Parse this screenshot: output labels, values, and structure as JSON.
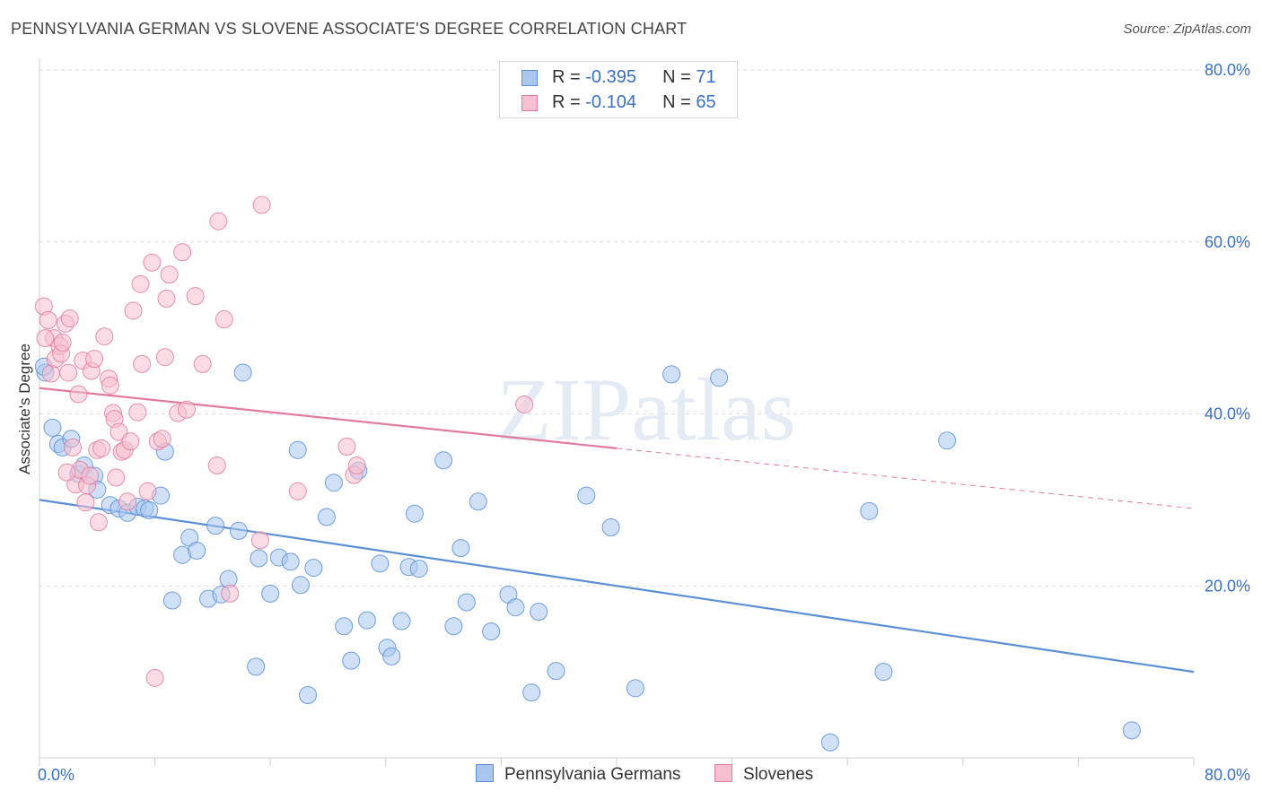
{
  "title": "PENNSYLVANIA GERMAN VS SLOVENE ASSOCIATE'S DEGREE CORRELATION CHART",
  "source": "Source: ZipAtlas.com",
  "watermark": "ZIPatlas",
  "legend": {
    "rows": [
      {
        "r_label": "R = ",
        "r_value": "-0.395",
        "n_label": "N = ",
        "n_value": "71",
        "color": "#a9c6ef",
        "border": "#5b8fd6"
      },
      {
        "r_label": "R = ",
        "r_value": "-0.104",
        "n_label": "N = ",
        "n_value": "65",
        "color": "#f7c0d0",
        "border": "#e27ba0"
      }
    ]
  },
  "bottom_legend": {
    "items": [
      {
        "label": "Pennsylvania Germans",
        "color": "#a9c6ef",
        "border": "#5b8fd6"
      },
      {
        "label": "Slovenes",
        "color": "#f7c0d0",
        "border": "#e27ba0"
      }
    ]
  },
  "chart_data": {
    "type": "scatter",
    "title": "PENNSYLVANIA GERMAN VS SLOVENE ASSOCIATE'S DEGREE CORRELATION CHART",
    "xlabel": "",
    "ylabel": "Associate's Degree",
    "xlim": [
      0,
      80
    ],
    "ylim": [
      0,
      80
    ],
    "x_tick_labels": [
      "0.0%",
      "80.0%"
    ],
    "y_tick_labels": [
      "20.0%",
      "40.0%",
      "60.0%",
      "80.0%"
    ],
    "y_ticks": [
      20,
      40,
      60,
      80
    ],
    "grid": true,
    "series": [
      {
        "name": "Pennsylvania Germans",
        "color": "#5b8fd6",
        "fill": "#a9c6ef",
        "R": -0.395,
        "N": 71,
        "trend": {
          "x0": 0,
          "y0": 30.0,
          "x1": 80,
          "y1": 10.0
        },
        "points": [
          [
            0.4,
            44.8
          ],
          [
            0.9,
            38.4
          ],
          [
            1.3,
            36.5
          ],
          [
            1.6,
            36.1
          ],
          [
            2.2,
            37.1
          ],
          [
            2.7,
            33.0
          ],
          [
            3.1,
            34.0
          ],
          [
            3.8,
            32.8
          ],
          [
            4.0,
            31.2
          ],
          [
            4.9,
            29.4
          ],
          [
            5.5,
            29.0
          ],
          [
            6.1,
            28.5
          ],
          [
            6.8,
            29.2
          ],
          [
            7.3,
            29.0
          ],
          [
            7.6,
            28.8
          ],
          [
            8.4,
            30.5
          ],
          [
            8.7,
            35.6
          ],
          [
            9.2,
            18.3
          ],
          [
            9.9,
            23.6
          ],
          [
            10.4,
            25.6
          ],
          [
            10.9,
            24.1
          ],
          [
            11.7,
            18.5
          ],
          [
            12.2,
            27.0
          ],
          [
            12.6,
            19.0
          ],
          [
            13.1,
            20.8
          ],
          [
            13.8,
            26.4
          ],
          [
            14.1,
            44.8
          ],
          [
            15.0,
            10.6
          ],
          [
            15.2,
            23.2
          ],
          [
            16.0,
            19.1
          ],
          [
            16.6,
            23.3
          ],
          [
            17.4,
            22.8
          ],
          [
            17.9,
            35.8
          ],
          [
            18.1,
            20.1
          ],
          [
            18.6,
            7.3
          ],
          [
            19.0,
            22.1
          ],
          [
            19.9,
            28.0
          ],
          [
            20.4,
            32.0
          ],
          [
            21.1,
            15.3
          ],
          [
            21.6,
            11.3
          ],
          [
            22.1,
            33.4
          ],
          [
            22.7,
            16.0
          ],
          [
            23.6,
            22.6
          ],
          [
            24.1,
            12.8
          ],
          [
            24.4,
            11.8
          ],
          [
            25.1,
            15.9
          ],
          [
            25.6,
            22.2
          ],
          [
            26.0,
            28.4
          ],
          [
            26.3,
            22.0
          ],
          [
            28.0,
            34.6
          ],
          [
            28.7,
            15.3
          ],
          [
            29.2,
            24.4
          ],
          [
            29.6,
            18.1
          ],
          [
            30.4,
            29.8
          ],
          [
            31.3,
            14.7
          ],
          [
            32.5,
            19.0
          ],
          [
            33.0,
            17.5
          ],
          [
            34.1,
            7.6
          ],
          [
            34.6,
            17.0
          ],
          [
            35.8,
            10.1
          ],
          [
            37.9,
            30.5
          ],
          [
            39.6,
            26.8
          ],
          [
            41.3,
            8.1
          ],
          [
            43.8,
            44.6
          ],
          [
            47.1,
            44.2
          ],
          [
            54.8,
            1.8
          ],
          [
            57.5,
            28.7
          ],
          [
            58.5,
            10.0
          ],
          [
            62.9,
            36.9
          ],
          [
            75.7,
            3.2
          ],
          [
            0.3,
            45.5
          ]
        ]
      },
      {
        "name": "Slovenes",
        "color": "#e27ba0",
        "fill": "#f7c0d0",
        "R": -0.104,
        "N": 65,
        "trend": {
          "x0": 0,
          "y0": 43.0,
          "x1": 80,
          "y1": 29.0,
          "solid_until": 40
        },
        "points": [
          [
            0.3,
            52.5
          ],
          [
            0.6,
            50.9
          ],
          [
            0.8,
            44.7
          ],
          [
            1.0,
            48.8
          ],
          [
            1.1,
            46.4
          ],
          [
            1.4,
            47.9
          ],
          [
            1.5,
            47.0
          ],
          [
            1.6,
            48.3
          ],
          [
            1.8,
            50.5
          ],
          [
            2.0,
            44.8
          ],
          [
            2.1,
            51.1
          ],
          [
            2.3,
            36.1
          ],
          [
            2.5,
            31.8
          ],
          [
            2.7,
            42.3
          ],
          [
            2.8,
            33.5
          ],
          [
            3.0,
            46.2
          ],
          [
            3.2,
            29.7
          ],
          [
            3.3,
            31.7
          ],
          [
            3.5,
            32.8
          ],
          [
            3.6,
            45.0
          ],
          [
            3.8,
            46.4
          ],
          [
            4.0,
            35.8
          ],
          [
            4.1,
            27.4
          ],
          [
            4.3,
            36.0
          ],
          [
            4.5,
            49.0
          ],
          [
            4.8,
            44.1
          ],
          [
            4.9,
            43.3
          ],
          [
            5.1,
            40.1
          ],
          [
            5.2,
            39.4
          ],
          [
            5.3,
            32.6
          ],
          [
            5.5,
            37.9
          ],
          [
            5.7,
            35.6
          ],
          [
            5.9,
            35.8
          ],
          [
            6.1,
            29.8
          ],
          [
            6.3,
            36.8
          ],
          [
            6.5,
            52.0
          ],
          [
            6.8,
            40.2
          ],
          [
            7.0,
            55.1
          ],
          [
            7.1,
            45.8
          ],
          [
            7.5,
            31.0
          ],
          [
            7.8,
            57.6
          ],
          [
            8.0,
            9.3
          ],
          [
            8.2,
            36.8
          ],
          [
            8.5,
            37.1
          ],
          [
            8.7,
            46.6
          ],
          [
            8.8,
            53.4
          ],
          [
            9.0,
            56.2
          ],
          [
            9.6,
            40.1
          ],
          [
            9.9,
            58.8
          ],
          [
            10.2,
            40.5
          ],
          [
            10.8,
            53.7
          ],
          [
            11.3,
            45.8
          ],
          [
            12.3,
            34.0
          ],
          [
            12.4,
            62.4
          ],
          [
            12.8,
            51.0
          ],
          [
            13.2,
            19.1
          ],
          [
            15.3,
            25.3
          ],
          [
            15.4,
            64.3
          ],
          [
            17.9,
            31.0
          ],
          [
            21.3,
            36.2
          ],
          [
            21.8,
            32.9
          ],
          [
            22.0,
            34.0
          ],
          [
            33.6,
            41.1
          ],
          [
            0.4,
            48.8
          ],
          [
            1.9,
            33.2
          ]
        ]
      }
    ]
  }
}
